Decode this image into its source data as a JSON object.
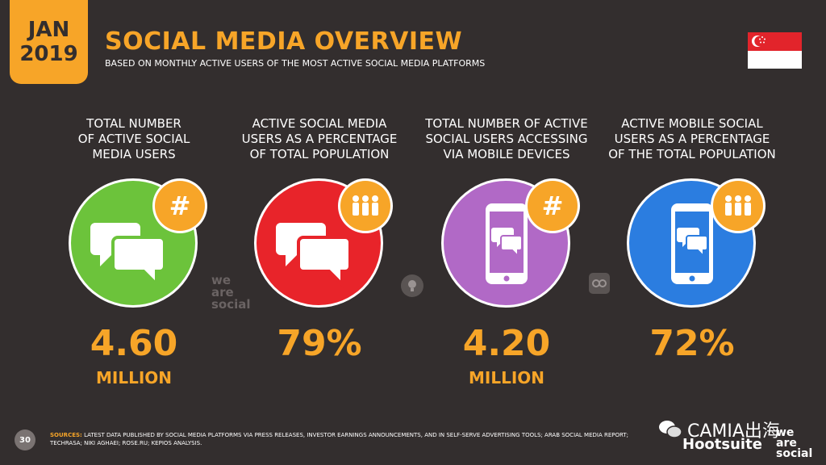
{
  "header": {
    "month": "JAN",
    "year": "2019",
    "title": "SOCIAL MEDIA OVERVIEW",
    "subtitle": "BASED ON MONTHLY ACTIVE USERS OF THE MOST ACTIVE SOCIAL MEDIA PLATFORMS"
  },
  "flag": {
    "icon": "singapore-flag-icon",
    "colors": [
      "#e2242b",
      "#ffffff"
    ]
  },
  "stats": [
    {
      "label_lines": [
        "TOTAL NUMBER",
        "OF ACTIVE SOCIAL",
        "MEDIA USERS"
      ],
      "value": "4.60",
      "unit": "MILLION",
      "color": "#6cc33b",
      "icon": "chat-bubbles-icon",
      "badge_icon": "hash-icon"
    },
    {
      "label_lines": [
        "ACTIVE SOCIAL MEDIA",
        "USERS AS A PERCENTAGE",
        "OF TOTAL POPULATION"
      ],
      "value": "79%",
      "unit": "",
      "color": "#e8242a",
      "icon": "chat-bubbles-icon",
      "badge_icon": "people-icon"
    },
    {
      "label_lines": [
        "TOTAL NUMBER OF ACTIVE",
        "SOCIAL USERS ACCESSING",
        "VIA MOBILE DEVICES"
      ],
      "value": "4.20",
      "unit": "MILLION",
      "color": "#b169c6",
      "icon": "mobile-chat-icon",
      "badge_icon": "hash-icon"
    },
    {
      "label_lines": [
        "ACTIVE MOBILE SOCIAL",
        "USERS AS A PERCENTAGE",
        "OF THE TOTAL POPULATION"
      ],
      "value": "72%",
      "unit": "",
      "color": "#2b7de0",
      "icon": "mobile-chat-icon",
      "badge_icon": "people-icon"
    }
  ],
  "badge_glyph": "#",
  "watermarks": {
    "we": "we",
    "are": "are",
    "social": "social"
  },
  "footer": {
    "page_number": "30",
    "sources_label": "SOURCES:",
    "sources_text": "LATEST DATA PUBLISHED BY SOCIAL MEDIA PLATFORMS VIA PRESS RELEASES, INVESTOR EARNINGS ANNOUNCEMENTS, AND IN SELF-SERVE ADVERTISING TOOLS; ARAB SOCIAL MEDIA REPORT; TECHRASA; NIKI AGHAEI; ROSE.RU; KEPIOS ANALYSIS.",
    "wechat_label": "CAMIA出海",
    "brand_hootsuite": "Hootsuite",
    "brand_we": "we",
    "brand_are": "are",
    "brand_social": "social"
  }
}
